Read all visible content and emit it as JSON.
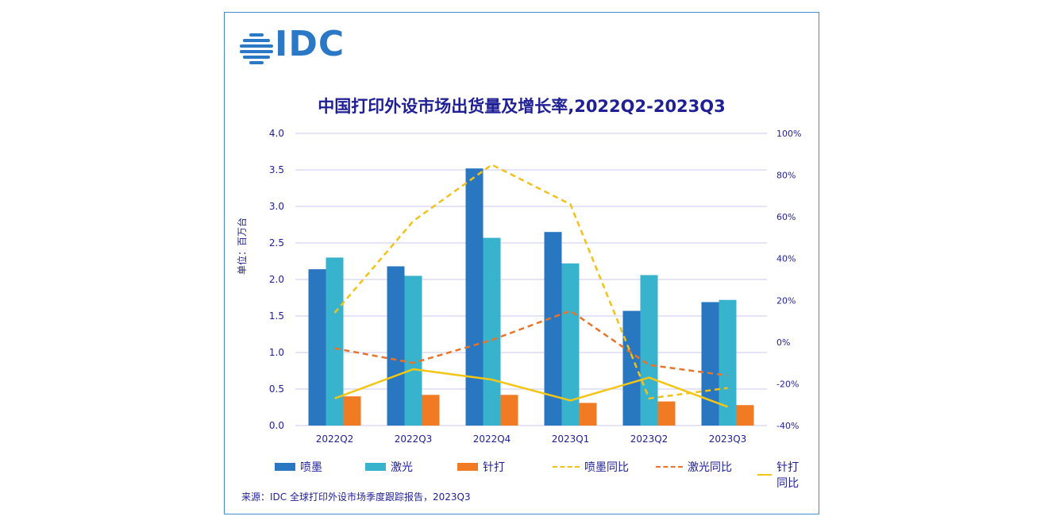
{
  "logo": {
    "text": "IDC",
    "icon": "idc-globe-icon"
  },
  "title": "中国打印外设市场出货量及增长率,2022Q2-2023Q3",
  "source": "来源：IDC 全球打印外设市场季度跟踪报告，2023Q3",
  "colors": {
    "inkjet": "#2877c0",
    "laser": "#38b3cd",
    "dot": "#f07b23",
    "inkjet_yoy": "#f2c219",
    "laser_yoy": "#e8742a",
    "dot_yoy": "#f5c516",
    "grid": "#c9c9ec",
    "text": "#1f1f96"
  },
  "chart_data": {
    "type": "bar",
    "title": "中国打印外设市场出货量及增长率,2022Q2-2023Q3",
    "ylabel": "单位：百万台",
    "categories": [
      "2022Q2",
      "2022Q3",
      "2022Q4",
      "2023Q1",
      "2023Q2",
      "2023Q3"
    ],
    "ylim": [
      0,
      4.0
    ],
    "yticks": [
      "0.0",
      "0.5",
      "1.0",
      "1.5",
      "2.0",
      "2.5",
      "3.0",
      "3.5",
      "4.0"
    ],
    "y2lim": [
      -40,
      100
    ],
    "y2ticks": [
      "-40%",
      "-20%",
      "0%",
      "20%",
      "40%",
      "60%",
      "80%",
      "100%"
    ],
    "grid": true,
    "legend_position": "bottom",
    "series": [
      {
        "name": "喷墨",
        "type": "bar",
        "axis": "left",
        "values": [
          2.14,
          2.18,
          3.52,
          2.65,
          1.57,
          1.69
        ]
      },
      {
        "name": "激光",
        "type": "bar",
        "axis": "left",
        "values": [
          2.3,
          2.05,
          2.57,
          2.22,
          2.06,
          1.72
        ]
      },
      {
        "name": "针打",
        "type": "bar",
        "axis": "left",
        "values": [
          0.4,
          0.42,
          0.42,
          0.31,
          0.33,
          0.28
        ]
      },
      {
        "name": "喷墨同比",
        "type": "line",
        "style": "dashed",
        "axis": "right",
        "values": [
          14,
          58,
          85,
          66,
          -27,
          -22
        ]
      },
      {
        "name": "激光同比",
        "type": "line",
        "style": "dashed",
        "axis": "right",
        "values": [
          -3,
          -10,
          1,
          15,
          -11,
          -16
        ]
      },
      {
        "name": "针打同比",
        "type": "line",
        "style": "solid",
        "axis": "right",
        "values": [
          -27,
          -13,
          -18,
          -28,
          -17,
          -31
        ]
      }
    ]
  }
}
